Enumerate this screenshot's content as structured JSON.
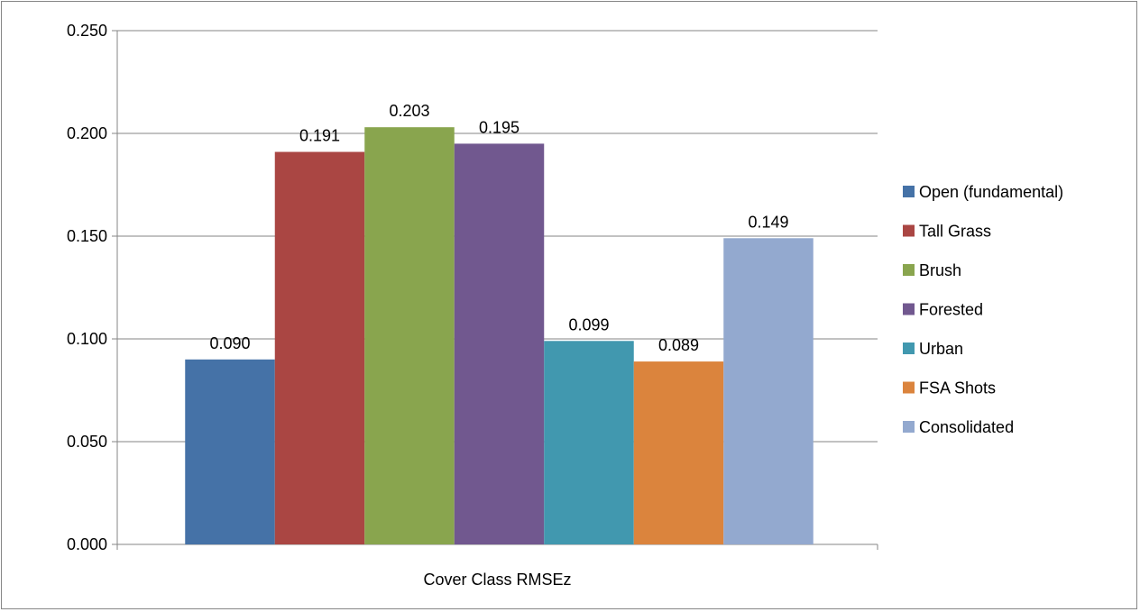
{
  "chart_data": {
    "type": "bar",
    "categories": [
      "Cover Class RMSEz"
    ],
    "xlabel": "",
    "ylabel": "",
    "ylim": [
      0,
      0.25
    ],
    "yticks": [
      "0.000",
      "0.050",
      "0.100",
      "0.150",
      "0.200",
      "0.250"
    ],
    "grid": true,
    "legend_position": "right",
    "series": [
      {
        "name": "Open (fundamental)",
        "values": [
          0.09
        ],
        "label": "0.090",
        "color": "#4572A7"
      },
      {
        "name": "Tall Grass",
        "values": [
          0.191
        ],
        "label": "0.191",
        "color": "#AA4643"
      },
      {
        "name": "Brush",
        "values": [
          0.203
        ],
        "label": "0.203",
        "color": "#89A54E"
      },
      {
        "name": "Forested",
        "values": [
          0.195
        ],
        "label": "0.195",
        "color": "#71588F"
      },
      {
        "name": "Urban",
        "values": [
          0.099
        ],
        "label": "0.099",
        "color": "#4198AF"
      },
      {
        "name": "FSA Shots",
        "values": [
          0.089
        ],
        "label": "0.089",
        "color": "#DB843D"
      },
      {
        "name": "Consolidated",
        "values": [
          0.149
        ],
        "label": "0.149",
        "color": "#93A9CF"
      }
    ]
  }
}
